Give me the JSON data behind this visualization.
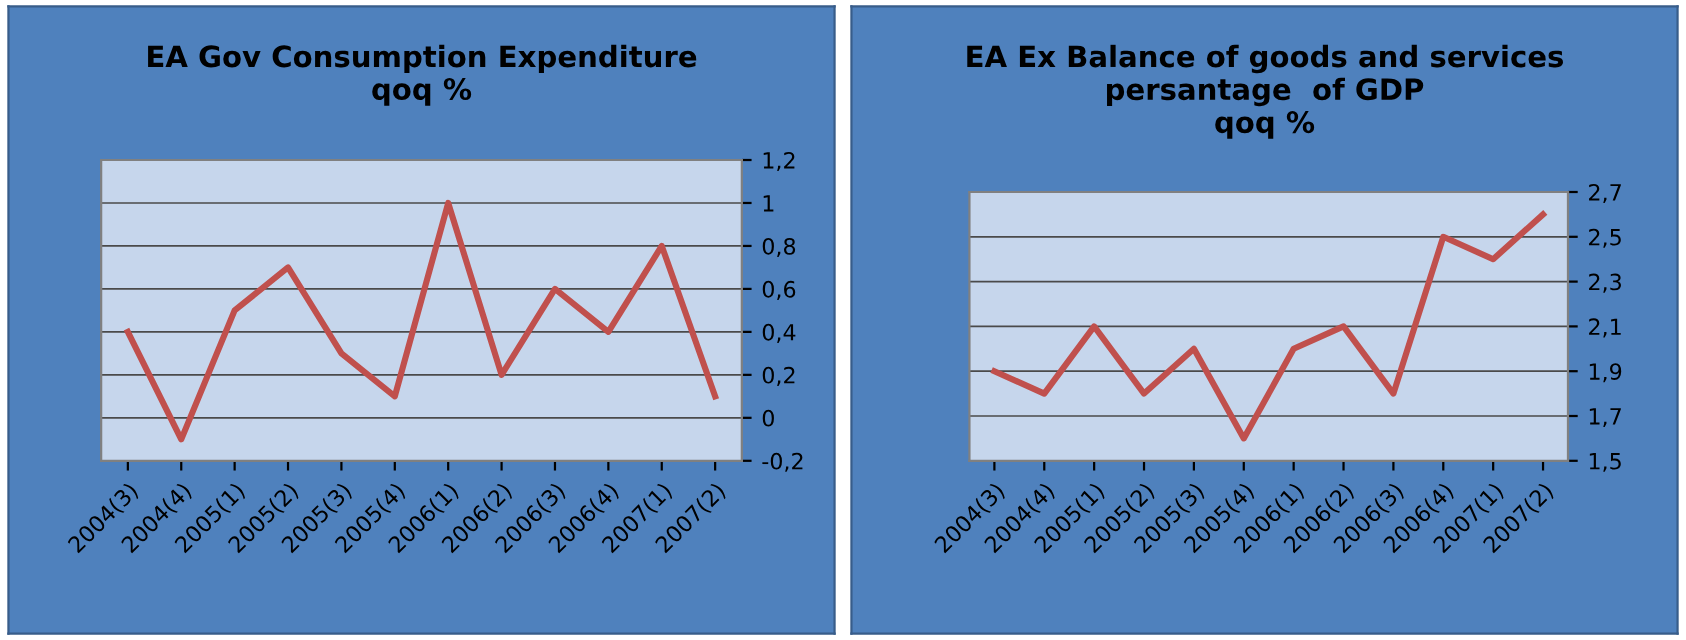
{
  "chart_data": [
    {
      "type": "line",
      "title": "EA Gov Consumption Expenditure\nqoq %",
      "categories": [
        "2004(3)",
        "2004(4)",
        "2005(1)",
        "2005(2)",
        "2005(3)",
        "2005(4)",
        "2006(1)",
        "2006(2)",
        "2006(3)",
        "2006(4)",
        "2007(1)",
        "2007(2)"
      ],
      "series": [
        {
          "color": "#c0504d",
          "values": [
            0.4,
            -0.1,
            0.5,
            0.7,
            0.3,
            0.1,
            1.0,
            0.2,
            0.6,
            0.4,
            0.8,
            0.1
          ]
        }
      ],
      "ylim": [
        -0.2,
        1.2
      ],
      "yticks": [
        {
          "value": -0.2,
          "label": "-0,2"
        },
        {
          "value": 0,
          "label": "0"
        },
        {
          "value": 0.2,
          "label": "0,2"
        },
        {
          "value": 0.4,
          "label": "0,4"
        },
        {
          "value": 0.6,
          "label": "0,6"
        },
        {
          "value": 0.8,
          "label": "0,8"
        },
        {
          "value": 1,
          "label": "1"
        },
        {
          "value": 1.2,
          "label": "1,2"
        }
      ],
      "grid": "y",
      "marker": "none",
      "line_style": "solid"
    },
    {
      "type": "line",
      "title": "EA Ex Balance of goods and services\npersantage  of GDP\nqoq %",
      "categories": [
        "2004(3)",
        "2004(4)",
        "2005(1)",
        "2005(2)",
        "2005(3)",
        "2005(4)",
        "2006(1)",
        "2006(2)",
        "2006(3)",
        "2006(4)",
        "2007(1)",
        "2007(2)"
      ],
      "series": [
        {
          "color": "#c0504d",
          "values": [
            1.9,
            1.8,
            2.1,
            1.8,
            2.0,
            1.6,
            2.0,
            2.1,
            1.8,
            2.5,
            2.4,
            2.6
          ]
        }
      ],
      "ylim": [
        1.5,
        2.7
      ],
      "yticks": [
        {
          "value": 1.5,
          "label": "1,5"
        },
        {
          "value": 1.7,
          "label": "1,7"
        },
        {
          "value": 1.9,
          "label": "1,9"
        },
        {
          "value": 2.1,
          "label": "2,1"
        },
        {
          "value": 2.3,
          "label": "2,3"
        },
        {
          "value": 2.5,
          "label": "2,5"
        },
        {
          "value": 2.7,
          "label": "2,7"
        }
      ],
      "grid": "y",
      "marker": "none",
      "line_style": "solid"
    }
  ]
}
